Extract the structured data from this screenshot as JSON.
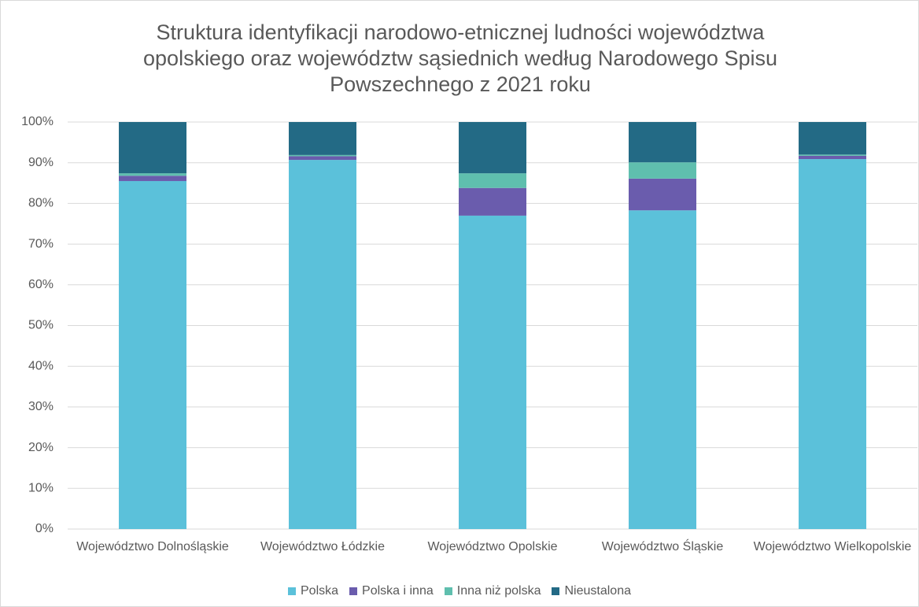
{
  "chart_data": {
    "type": "stacked_bar",
    "title": "Struktura identyfikacji narodowo-etnicznej ludności województwa opolskiego oraz województw sąsiednich według Narodowego Spisu Powszechnego z 2021 roku",
    "categories": [
      "Województwo Dolnośląskie",
      "Województwo Łódzkie",
      "Województwo Opolskie",
      "Województwo Śląskie",
      "Województwo Wielkopolskie"
    ],
    "series": [
      {
        "name": "Polska",
        "color": "#5bc1da",
        "values": [
          85.5,
          90.7,
          77.0,
          78.3,
          90.9
        ]
      },
      {
        "name": "Polska i inna",
        "color": "#6a5cad",
        "values": [
          1.3,
          0.9,
          6.8,
          7.8,
          0.8
        ]
      },
      {
        "name": "Inna niż polska",
        "color": "#5fbfae",
        "values": [
          0.6,
          0.3,
          3.6,
          4.0,
          0.3
        ]
      },
      {
        "name": "Nieustalona",
        "color": "#236a85",
        "values": [
          12.6,
          8.1,
          12.6,
          9.9,
          8.0
        ]
      }
    ],
    "ylim": [
      0,
      100
    ],
    "yticks": [
      {
        "value": 0,
        "label": "0%"
      },
      {
        "value": 10,
        "label": "10%"
      },
      {
        "value": 20,
        "label": "20%"
      },
      {
        "value": 30,
        "label": "30%"
      },
      {
        "value": 40,
        "label": "40%"
      },
      {
        "value": 50,
        "label": "50%"
      },
      {
        "value": 60,
        "label": "60%"
      },
      {
        "value": 70,
        "label": "70%"
      },
      {
        "value": 80,
        "label": "80%"
      },
      {
        "value": 90,
        "label": "90%"
      },
      {
        "value": 100,
        "label": "100%"
      }
    ],
    "grid": true,
    "legend": "bottom"
  }
}
